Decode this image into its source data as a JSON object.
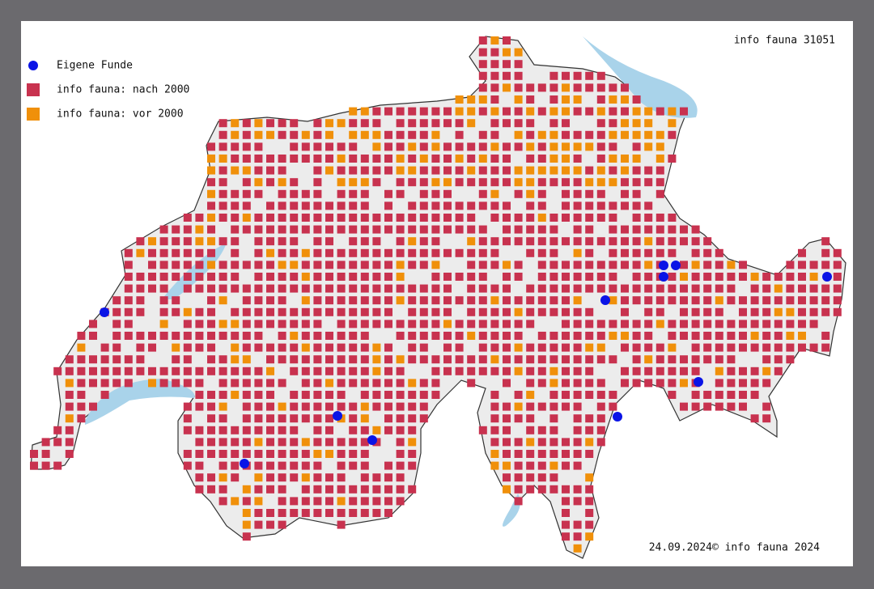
{
  "header": {
    "title": "info fauna 31051"
  },
  "legend": {
    "items": [
      {
        "label": "Eigene Funde",
        "color": "#0a14e6"
      },
      {
        "label": "info fauna: nach 2000",
        "color": "#c8324f"
      },
      {
        "label": "info fauna: vor 2000",
        "color": "#f0900a"
      }
    ]
  },
  "footer": {
    "date": "24.09.2024",
    "copyright": "© info fauna 2024"
  }
}
